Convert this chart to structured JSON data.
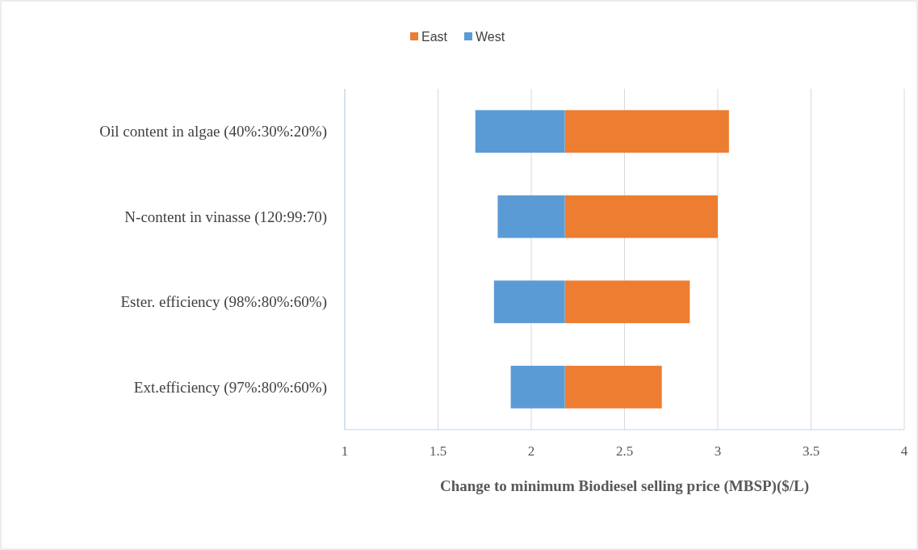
{
  "chart_data": {
    "type": "bar",
    "orientation": "horizontal",
    "xlabel": "Change to minimum  Biodiesel selling price (MBSP)($/L)",
    "categories": [
      "Oil content in algae (40%:30%:20%)",
      "N-content in vinasse (120:99:70)",
      "Ester. efficiency (98%:80%:60%)",
      "Ext.efficiency (97%:80%:60%)"
    ],
    "series": [
      {
        "name": "East",
        "color": "#ed7d31",
        "base": [
          2.18,
          2.18,
          2.18,
          2.18
        ],
        "values": [
          0.88,
          0.82,
          0.67,
          0.52
        ]
      },
      {
        "name": "West",
        "color": "#5b9bd5",
        "base": [
          2.18,
          2.18,
          2.18,
          2.18
        ],
        "values": [
          -0.48,
          -0.36,
          -0.38,
          -0.29
        ]
      }
    ],
    "xlim": [
      1,
      4
    ],
    "xticks": [
      1,
      1.5,
      2,
      2.5,
      3,
      3.5,
      4
    ],
    "grid": "x",
    "legend": "top"
  }
}
